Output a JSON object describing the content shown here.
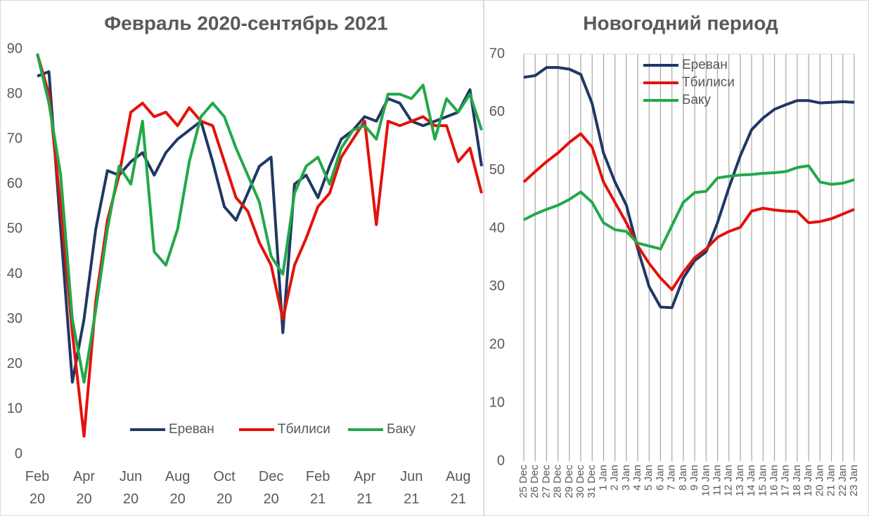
{
  "chart_data": [
    {
      "type": "line",
      "title": "Февраль 2020-сентябрь 2021",
      "categories": [
        "Feb 20",
        null,
        null,
        null,
        "Apr 20",
        null,
        null,
        null,
        "Jun 20",
        null,
        null,
        null,
        "Aug 20",
        null,
        null,
        null,
        "Oct 20",
        null,
        null,
        null,
        "Dec 20",
        null,
        null,
        null,
        "Feb 21",
        null,
        null,
        null,
        "Apr 21",
        null,
        null,
        null,
        "Jun 21",
        null,
        null,
        null,
        "Aug 21",
        null,
        null
      ],
      "series": [
        {
          "name": "Ереван",
          "color": "#1f3864",
          "values": [
            84,
            85,
            50,
            16,
            30,
            50,
            63,
            62,
            65,
            67,
            62,
            67,
            70,
            72,
            74,
            65,
            55,
            52,
            58,
            64,
            66,
            27,
            60,
            62,
            57,
            64,
            70,
            72,
            75,
            74,
            79,
            78,
            74,
            73,
            74,
            75,
            76,
            81,
            64
          ]
        },
        {
          "name": "Тбилиси",
          "color": "#e3120b",
          "values": [
            89,
            80,
            55,
            27,
            4,
            34,
            52,
            62,
            76,
            78,
            75,
            76,
            73,
            77,
            74,
            73,
            65,
            57,
            54,
            47,
            42,
            30,
            42,
            48,
            55,
            58,
            66,
            70,
            74,
            51,
            74,
            73,
            74,
            75,
            73,
            73,
            65,
            68,
            58
          ]
        },
        {
          "name": "Баку",
          "color": "#22a84a",
          "values": [
            89,
            78,
            62,
            30,
            16,
            32,
            50,
            64,
            60,
            74,
            45,
            42,
            50,
            65,
            75,
            78,
            75,
            68,
            62,
            56,
            44,
            40,
            58,
            64,
            66,
            60,
            68,
            72,
            73,
            70,
            80,
            80,
            79,
            82,
            70,
            79,
            76,
            80,
            72
          ]
        }
      ],
      "ylim": [
        0,
        90
      ],
      "yticks": [
        0,
        10,
        20,
        30,
        40,
        50,
        60,
        70,
        80,
        90
      ],
      "grid": false,
      "legend": "bottom"
    },
    {
      "type": "line",
      "title": "Новогодний период",
      "categories": [
        "25 Dec",
        "26 Dec",
        "27 Dec",
        "28 Dec",
        "29 Dec",
        "30 Dec",
        "31 Dec",
        "1 Jan",
        "2 Jan",
        "3 Jan",
        "4 Jan",
        "5 Jan",
        "6 Jan",
        "7 Jan",
        "8 Jan",
        "9 Jan",
        "10 Jan",
        "11 Jan",
        "12 Jan",
        "13 Jan",
        "14 Jan",
        "15 Jan",
        "16 Jan",
        "17 Jan",
        "18 Jan",
        "19 Jan",
        "20 Jan",
        "21 Jan",
        "22 Jan",
        "23 Jan"
      ],
      "series": [
        {
          "name": "Ереван",
          "color": "#1f3864",
          "values": [
            66,
            66.3,
            67.7,
            67.7,
            67.4,
            66.5,
            61.5,
            53,
            48,
            44,
            36.5,
            30,
            26.5,
            26.4,
            31.5,
            34.5,
            36,
            41,
            47,
            52.5,
            57,
            59,
            60.5,
            61.3,
            62,
            62,
            61.6,
            61.7,
            61.8,
            61.7
          ]
        },
        {
          "name": "Тбилиси",
          "color": "#e3120b",
          "values": [
            48,
            49.8,
            51.5,
            53,
            54.8,
            56.3,
            54,
            48,
            44.5,
            41,
            37,
            34,
            31.5,
            29.5,
            32.5,
            35,
            36.5,
            38.5,
            39.5,
            40.2,
            43,
            43.5,
            43.2,
            43,
            42.9,
            41,
            41.2,
            41.7,
            42.5,
            43.3
          ]
        },
        {
          "name": "Баку",
          "color": "#22a84a",
          "values": [
            41.5,
            42.5,
            43.3,
            44,
            45,
            46.3,
            44.5,
            41,
            39.8,
            39.5,
            37.5,
            37,
            36.5,
            40.5,
            44.5,
            46.2,
            46.4,
            48.7,
            49,
            49.2,
            49.3,
            49.5,
            49.6,
            49.8,
            50.5,
            50.8,
            48,
            47.6,
            47.8,
            48.4
          ]
        }
      ],
      "ylim": [
        0,
        70
      ],
      "yticks": [
        0,
        10,
        20,
        30,
        40,
        50,
        60,
        70
      ],
      "grid": "vertical",
      "legend": "top-left"
    }
  ]
}
